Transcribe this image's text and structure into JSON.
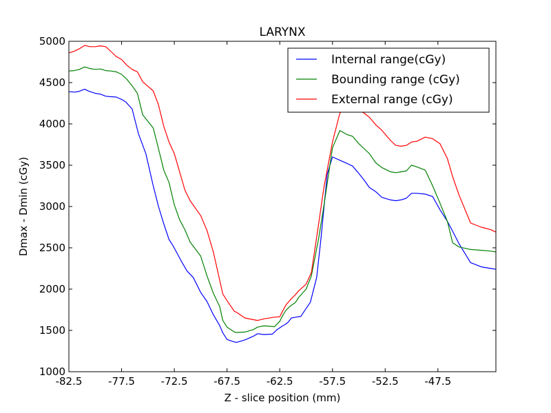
{
  "chart_data": {
    "type": "line",
    "title": "LARYNX",
    "xlabel": "Z - slice position (mm)",
    "ylabel": "Dmax - Dmin (cGy)",
    "xlim": [
      -82.5,
      -42.0
    ],
    "ylim": [
      1000,
      5000
    ],
    "x_ticks": [
      -82.5,
      -77.5,
      -72.5,
      -67.5,
      -62.5,
      -57.5,
      -52.5,
      -47.5
    ],
    "x_tick_labels": [
      "-82.5",
      "-77.5",
      "-72.5",
      "-67.5",
      "-62.5",
      "-57.5",
      "-52.5",
      "-47.5"
    ],
    "y_ticks": [
      1000,
      1500,
      2000,
      2500,
      3000,
      3500,
      4000,
      4500,
      5000
    ],
    "y_tick_labels": [
      "1000",
      "1500",
      "2000",
      "2500",
      "3000",
      "3500",
      "4000",
      "4500",
      "5000"
    ],
    "grid": false,
    "legend_position": "top-right",
    "series": [
      {
        "name": "Internal range(cGy)",
        "color": "#0000ff",
        "x": [
          -82.5,
          -81.9,
          -81.5,
          -81.0,
          -80.6,
          -80.0,
          -79.5,
          -79.0,
          -78.6,
          -78.0,
          -77.4,
          -77.1,
          -76.5,
          -75.9,
          -75.2,
          -74.5,
          -74.0,
          -73.5,
          -73.0,
          -72.6,
          -71.8,
          -71.3,
          -70.7,
          -70.0,
          -69.4,
          -68.8,
          -68.2,
          -67.9,
          -67.5,
          -66.8,
          -66.6,
          -65.8,
          -65.0,
          -64.6,
          -64.0,
          -63.2,
          -62.8,
          -62.4,
          -62.3,
          -62.0,
          -61.7,
          -61.4,
          -61.0,
          -60.5,
          -59.6,
          -59.0,
          -58.6,
          -58.0,
          -57.5,
          -56.8,
          -56.1,
          -55.6,
          -55.0,
          -54.5,
          -54.0,
          -53.4,
          -52.8,
          -52.0,
          -51.5,
          -51.0,
          -50.5,
          -50.0,
          -49.5,
          -48.7,
          -48.0,
          -47.3,
          -46.6,
          -46.1,
          -45.5,
          -44.4,
          -43.4,
          -42.5,
          -42.0
        ],
        "values": [
          4390,
          4385,
          4395,
          4420,
          4395,
          4370,
          4360,
          4335,
          4330,
          4325,
          4290,
          4265,
          4180,
          3880,
          3640,
          3250,
          3000,
          2790,
          2600,
          2520,
          2330,
          2220,
          2140,
          1960,
          1850,
          1690,
          1560,
          1470,
          1390,
          1360,
          1355,
          1385,
          1430,
          1460,
          1450,
          1455,
          1505,
          1540,
          1550,
          1570,
          1600,
          1650,
          1660,
          1670,
          1840,
          2140,
          2600,
          3390,
          3600,
          3560,
          3520,
          3490,
          3400,
          3320,
          3230,
          3180,
          3110,
          3080,
          3070,
          3080,
          3100,
          3160,
          3160,
          3150,
          3120,
          2960,
          2820,
          2700,
          2550,
          2320,
          2270,
          2250,
          2240
        ]
      },
      {
        "name": "Bounding range (cGy)",
        "color": "#008000",
        "x": [
          -82.5,
          -82.0,
          -81.5,
          -81.0,
          -80.5,
          -80.0,
          -79.5,
          -79.0,
          -78.5,
          -78.0,
          -77.5,
          -77.0,
          -76.5,
          -76.0,
          -75.5,
          -74.5,
          -74.0,
          -73.5,
          -73.0,
          -72.5,
          -72.0,
          -71.5,
          -71.0,
          -70.0,
          -69.4,
          -68.8,
          -68.2,
          -67.9,
          -67.5,
          -66.8,
          -66.6,
          -65.8,
          -65.0,
          -64.6,
          -64.0,
          -63.0,
          -62.5,
          -62.2,
          -61.9,
          -61.5,
          -61.0,
          -60.7,
          -60.0,
          -59.5,
          -58.8,
          -58.3,
          -57.5,
          -56.8,
          -56.1,
          -55.6,
          -55.0,
          -54.5,
          -54.0,
          -53.4,
          -52.8,
          -52.0,
          -51.5,
          -51.0,
          -50.5,
          -50.0,
          -49.5,
          -48.7,
          -48.0,
          -47.3,
          -46.6,
          -46.1,
          -45.5,
          -44.4,
          -43.4,
          -42.5,
          -42.0
        ],
        "values": [
          4640,
          4645,
          4660,
          4690,
          4670,
          4660,
          4665,
          4645,
          4640,
          4630,
          4600,
          4540,
          4460,
          4370,
          4110,
          3950,
          3700,
          3440,
          3290,
          3020,
          2840,
          2720,
          2570,
          2400,
          2160,
          1950,
          1790,
          1620,
          1540,
          1480,
          1475,
          1480,
          1510,
          1540,
          1555,
          1545,
          1610,
          1685,
          1745,
          1795,
          1840,
          1900,
          2000,
          2160,
          2620,
          3020,
          3710,
          3920,
          3870,
          3850,
          3760,
          3700,
          3640,
          3530,
          3470,
          3420,
          3410,
          3420,
          3430,
          3500,
          3480,
          3440,
          3250,
          3040,
          2820,
          2560,
          2510,
          2480,
          2470,
          2460,
          2450
        ]
      },
      {
        "name": "External range (cGy)",
        "color": "#ff0000",
        "x": [
          -82.5,
          -82.0,
          -81.5,
          -81.0,
          -80.5,
          -80.0,
          -79.5,
          -79.0,
          -78.5,
          -78.0,
          -77.5,
          -77.0,
          -76.5,
          -76.0,
          -75.5,
          -74.5,
          -74.0,
          -73.5,
          -73.0,
          -72.5,
          -72.0,
          -71.5,
          -71.0,
          -70.0,
          -69.4,
          -68.8,
          -68.2,
          -67.9,
          -67.5,
          -66.8,
          -66.6,
          -65.8,
          -65.0,
          -64.6,
          -64.0,
          -63.0,
          -62.5,
          -62.2,
          -61.9,
          -61.5,
          -61.0,
          -60.7,
          -60.0,
          -59.5,
          -58.8,
          -58.3,
          -57.5,
          -56.8,
          -56.1,
          -55.6,
          -55.0,
          -54.5,
          -54.0,
          -53.4,
          -52.8,
          -52.0,
          -51.5,
          -51.0,
          -50.5,
          -50.0,
          -49.5,
          -48.7,
          -48.0,
          -47.3,
          -46.6,
          -46.1,
          -45.5,
          -44.4,
          -43.4,
          -42.5,
          -42.0
        ],
        "values": [
          4860,
          4880,
          4910,
          4950,
          4935,
          4935,
          4945,
          4935,
          4875,
          4815,
          4780,
          4710,
          4660,
          4630,
          4510,
          4400,
          4230,
          3970,
          3780,
          3640,
          3420,
          3200,
          3070,
          2890,
          2710,
          2450,
          2110,
          1940,
          1860,
          1730,
          1720,
          1650,
          1630,
          1620,
          1640,
          1660,
          1665,
          1740,
          1810,
          1870,
          1935,
          1980,
          2060,
          2200,
          2800,
          3240,
          3780,
          4130,
          4210,
          4250,
          4170,
          4130,
          4080,
          3990,
          3920,
          3800,
          3740,
          3730,
          3740,
          3780,
          3790,
          3840,
          3820,
          3760,
          3580,
          3360,
          3140,
          2800,
          2750,
          2720,
          2690
        ]
      }
    ]
  }
}
